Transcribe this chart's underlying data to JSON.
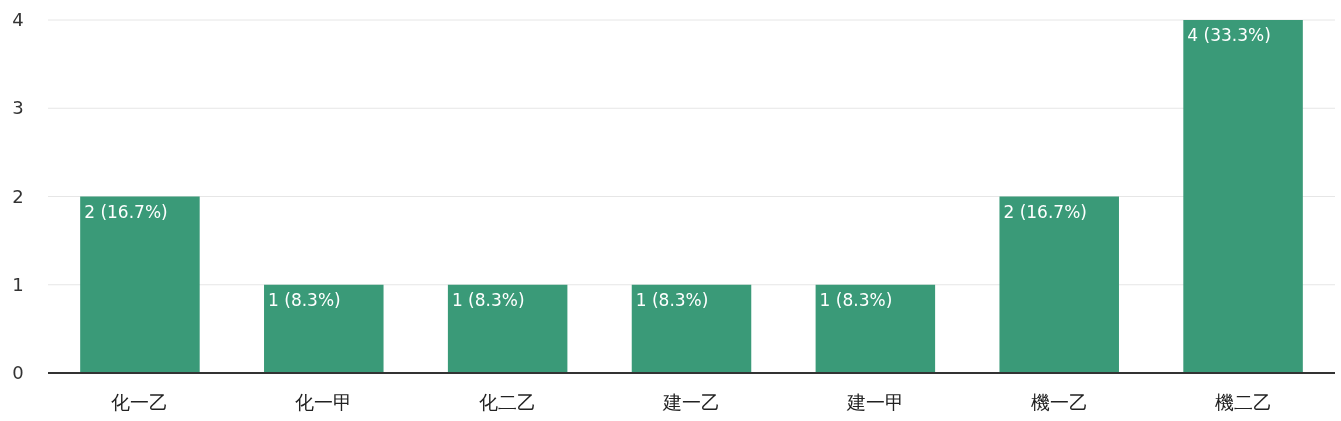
{
  "chart_data": {
    "type": "bar",
    "categories": [
      "化一乙",
      "化一甲",
      "化二乙",
      "建一乙",
      "建一甲",
      "機一乙",
      "機二乙"
    ],
    "values": [
      2,
      1,
      1,
      1,
      1,
      2,
      4
    ],
    "value_labels": [
      "2 (16.7%)",
      "1 (8.3%)",
      "1 (8.3%)",
      "1 (8.3%)",
      "1 (8.3%)",
      "2 (16.7%)",
      "4 (33.3%)"
    ],
    "color": "#3a9a78",
    "ylim": [
      0,
      4
    ],
    "yticks": [
      0,
      1,
      2,
      3,
      4
    ],
    "grid": "y"
  }
}
